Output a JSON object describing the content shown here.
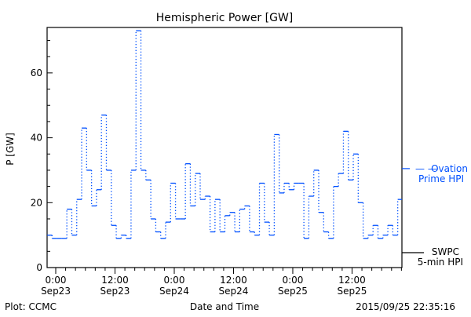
{
  "chart_data": {
    "type": "line",
    "title": "Hemispheric Power [GW]",
    "xlabel": "Date and Time",
    "ylabel": "P [GW]",
    "ylim": [
      0,
      74
    ],
    "xlim_hours_from_sep23_0000": [
      -1.75,
      70.1
    ],
    "yticks": [
      0,
      20,
      40,
      60
    ],
    "xticks": [
      {
        "hour": 0,
        "time": "0:00",
        "date": "Sep23"
      },
      {
        "hour": 12,
        "time": "12:00",
        "date": "Sep23"
      },
      {
        "hour": 24,
        "time": "0:00",
        "date": "Sep24"
      },
      {
        "hour": 36,
        "time": "12:00",
        "date": "Sep24"
      },
      {
        "hour": 48,
        "time": "0:00",
        "date": "Sep25"
      },
      {
        "hour": 60,
        "time": "12:00",
        "date": "Sep25"
      }
    ],
    "series": [
      {
        "name": "Ovation Prime HPI",
        "color": "#0050ff",
        "style": "step",
        "start_hour": -1.75,
        "step_hours": 1,
        "values": [
          10,
          9,
          9,
          9,
          18,
          10,
          21,
          43,
          30,
          19,
          24,
          47,
          30,
          13,
          9,
          10,
          9,
          30,
          73,
          30,
          27,
          15,
          11,
          9,
          14,
          26,
          15,
          15,
          32,
          19,
          29,
          21,
          22,
          11,
          21,
          11,
          16,
          17,
          11,
          18,
          19,
          11,
          10,
          26,
          14,
          10,
          41,
          23,
          26,
          24,
          26,
          26,
          9,
          22,
          30,
          17,
          11,
          9,
          25,
          29,
          42,
          27,
          35,
          20,
          9,
          10,
          13,
          9,
          10,
          13,
          10,
          21
        ]
      }
    ],
    "legend": [
      {
        "label_line1": "Ovation",
        "label_line2": "Prime HPI",
        "prefix": "— —",
        "color": "#0050ff",
        "marker_value": 30.5
      },
      {
        "label_line1": "SWPC",
        "label_line2": "5-min HPI",
        "color": "#000000",
        "marker_value": 4.6
      }
    ],
    "legend_position": "right",
    "footer_left": "Plot: CCMC",
    "footer_right": "2015/09/25 22:35:16"
  }
}
